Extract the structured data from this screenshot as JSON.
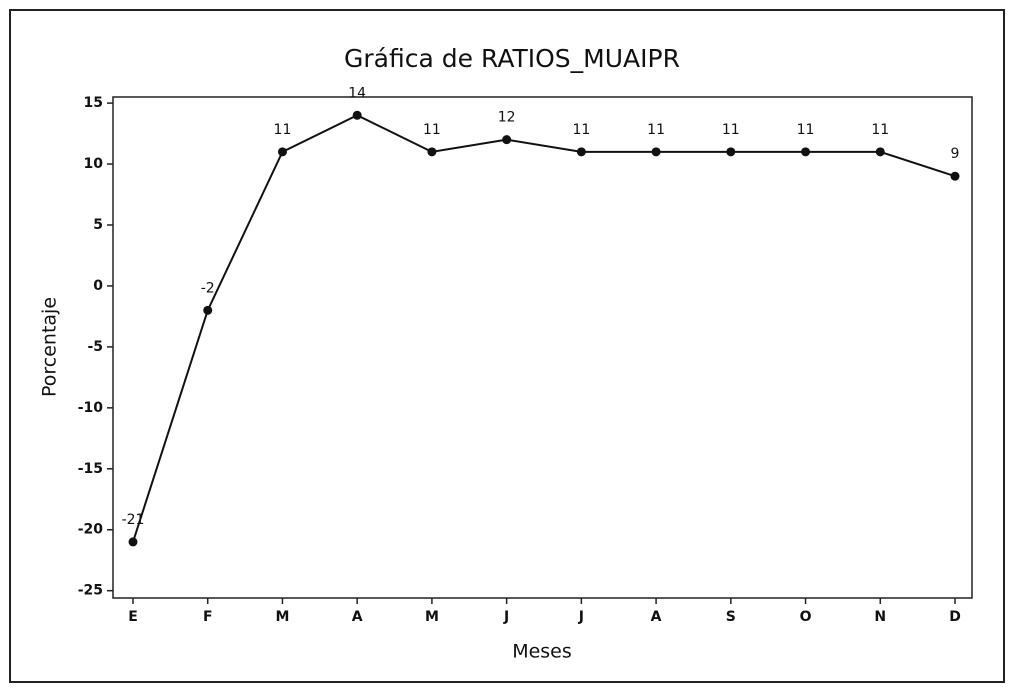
{
  "chart_data": {
    "type": "line",
    "title": "Gráfica de RATIOS_MUAIPR",
    "xlabel": "Meses",
    "ylabel": "Porcentaje",
    "categories": [
      "E",
      "F",
      "M",
      "A",
      "M",
      "J",
      "J",
      "A",
      "S",
      "O",
      "N",
      "D"
    ],
    "series": [
      {
        "name": "RATIOS_MUAIPR",
        "color": "#111111",
        "values": [
          -21,
          -2,
          11,
          14,
          11,
          12,
          11,
          11,
          11,
          11,
          11,
          9
        ]
      }
    ],
    "ylim": [
      -25.6,
      15.5
    ],
    "yticks": [
      -25,
      -20,
      -15,
      -10,
      -5,
      0,
      5,
      10,
      15
    ],
    "grid": false,
    "data_labels": true
  }
}
